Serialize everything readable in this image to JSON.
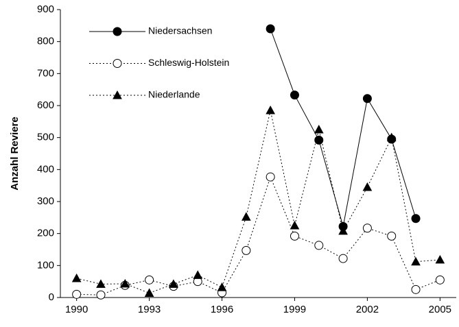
{
  "chart_data": {
    "type": "line",
    "y_label": "Anzahl Reviere",
    "x": [
      1990,
      1991,
      1992,
      1993,
      1994,
      1995,
      1996,
      1997,
      1998,
      1999,
      2000,
      2001,
      2002,
      2003,
      2004,
      2005
    ],
    "series": [
      {
        "name": "Niedersachsen",
        "color": "#000000",
        "marker": "circle",
        "marker_fill": "#000000",
        "dash": "solid",
        "values": [
          null,
          null,
          null,
          null,
          null,
          null,
          null,
          null,
          840,
          633,
          492,
          222,
          622,
          495,
          247,
          null
        ]
      },
      {
        "name": "Schleswig-Holstein",
        "color": "#000000",
        "marker": "circle",
        "marker_fill": "#ffffff",
        "dash": "dotted",
        "values": [
          10,
          8,
          38,
          55,
          35,
          50,
          15,
          147,
          377,
          192,
          163,
          122,
          217,
          192,
          25,
          55
        ]
      },
      {
        "name": "Niederlande",
        "color": "#000000",
        "marker": "triangle",
        "marker_fill": "#000000",
        "dash": "dotted",
        "values": [
          60,
          42,
          43,
          14,
          42,
          70,
          32,
          252,
          585,
          225,
          525,
          208,
          345,
          500,
          112,
          118
        ]
      }
    ],
    "xlim": [
      1989.33,
      2005.67
    ],
    "xticks": [
      1990,
      1993,
      1996,
      1999,
      2002,
      2005
    ],
    "ylim": [
      0,
      900
    ],
    "yticks": [
      0,
      100,
      200,
      300,
      400,
      500,
      600,
      700,
      800,
      900
    ],
    "grid": false,
    "legend": "upper left"
  }
}
